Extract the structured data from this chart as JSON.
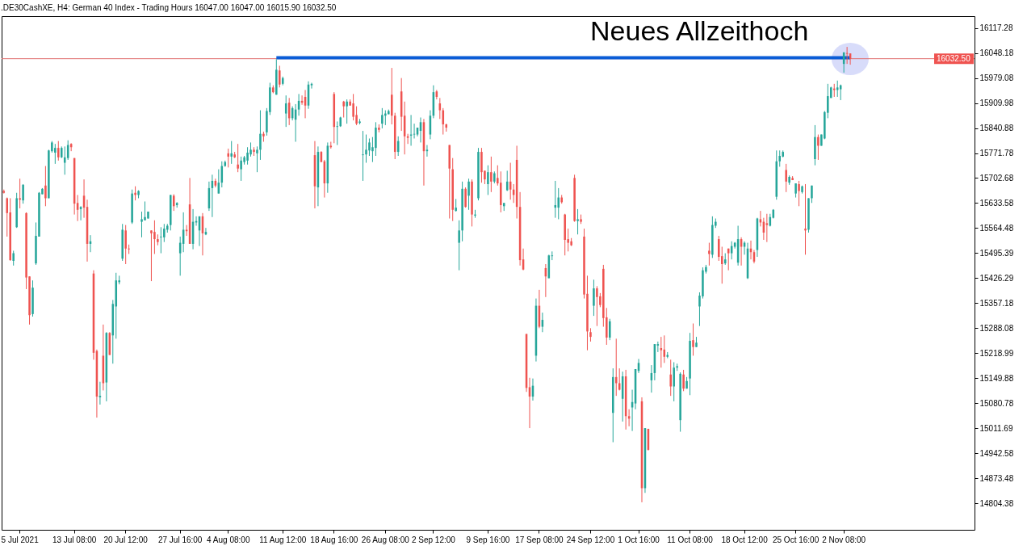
{
  "chart_data": {
    "type": "candlestick",
    "title": ".DE30CashXE, H4: German 40 Index - Trading Hours 16047.00 16047.00 16015.90 16032.50",
    "annotations": [
      "Neues Allzeithoch"
    ],
    "categories": [
      null,
      null,
      null,
      null,
      null,
      "5 Jul 2021",
      null,
      null,
      null,
      null,
      null,
      null,
      null,
      null,
      null,
      null,
      null,
      null,
      null,
      null,
      null,
      null,
      "13 Jul 08:00",
      null,
      null,
      null,
      null,
      null,
      null,
      null,
      null,
      null,
      null,
      null,
      null,
      null,
      null,
      null,
      "20 Jul 12:00",
      null,
      null,
      null,
      null,
      null,
      null,
      null,
      null,
      null,
      null,
      null,
      null,
      null,
      null,
      null,
      null,
      "27 Jul 16:00",
      null,
      null,
      null,
      null,
      null,
      null,
      null,
      null,
      null,
      null,
      null,
      null,
      null,
      null,
      "4 Aug 08:00",
      null,
      null,
      null,
      null,
      null,
      null,
      null,
      null,
      null,
      null,
      null,
      null,
      null,
      null,
      null,
      null,
      "11 Aug 12:00",
      null,
      null,
      null,
      null,
      null,
      null,
      null,
      null,
      null,
      null,
      null,
      null,
      null,
      null,
      null,
      "18 Aug 16:00",
      null,
      null,
      null,
      null,
      null,
      null,
      null,
      null,
      null,
      null,
      null,
      null,
      null,
      null,
      null,
      "26 Aug 08:00",
      null,
      null,
      null,
      null,
      null,
      null,
      null,
      null,
      null,
      null,
      null,
      null,
      null,
      null,
      "2 Sep 12:00",
      null,
      null,
      null,
      null,
      null,
      null,
      null,
      null,
      null,
      null,
      null,
      null,
      null,
      null,
      null,
      null,
      "9 Sep 16:00",
      null,
      null,
      null,
      null,
      null,
      null,
      null,
      null,
      null,
      null,
      null,
      null,
      null,
      null,
      null,
      "17 Sep 08:00",
      null,
      null,
      null,
      null,
      null,
      null,
      null,
      null,
      null,
      null,
      null,
      null,
      null,
      null,
      null,
      "24 Sep 12:00",
      null,
      null,
      null,
      null,
      null,
      null,
      null,
      null,
      null,
      null,
      null,
      null,
      null,
      null,
      "1 Oct 16:00",
      null,
      null,
      null,
      null,
      null,
      null,
      null,
      null,
      null,
      null,
      null,
      null,
      null,
      null,
      null,
      "11 Oct 08:00",
      null,
      null,
      null,
      null,
      null,
      null,
      null,
      null,
      null,
      null,
      null,
      null,
      null,
      null,
      null,
      null,
      "18 Oct 12:00",
      null,
      null,
      null,
      null,
      null,
      null,
      null,
      null,
      null,
      null,
      null,
      null,
      null,
      null,
      null,
      "25 Oct 16:00",
      null,
      null,
      null,
      null,
      null,
      null,
      null,
      null,
      null,
      null,
      null,
      null,
      null,
      null,
      "2 Nov 08:00",
      null,
      null
    ],
    "ohlc": [
      [
        15667,
        15671,
        15660,
        15662
      ],
      [
        15647,
        15649,
        15541,
        15606
      ],
      [
        15608,
        15647,
        15474,
        15476
      ],
      [
        15474,
        15502,
        15461,
        15495
      ],
      [
        15567,
        15662,
        15565,
        15647
      ],
      [
        15647,
        15701,
        15619,
        15643
      ],
      [
        15641,
        15686,
        15632,
        15684
      ],
      [
        15606,
        15608,
        15396,
        15428
      ],
      [
        15431,
        15431,
        15298,
        15324
      ],
      [
        15327,
        15420,
        15320,
        15400
      ],
      [
        15467,
        15580,
        15463,
        15543
      ],
      [
        15541,
        15664,
        15541,
        15662
      ],
      [
        15658,
        15675,
        15658,
        15673
      ],
      [
        15682,
        15736,
        15625,
        15647
      ],
      [
        15647,
        15781,
        15647,
        15779
      ],
      [
        15777,
        15805,
        15773,
        15801
      ],
      [
        15773,
        15797,
        15742,
        15786
      ],
      [
        15786,
        15805,
        15751,
        15760
      ],
      [
        15760,
        15790,
        15758,
        15786
      ],
      [
        15745,
        15790,
        15712,
        15760
      ],
      [
        15758,
        15807,
        15753,
        15794
      ],
      [
        15797,
        15799,
        15777,
        15788
      ],
      [
        15758,
        15758,
        15602,
        15632
      ],
      [
        15634,
        15656,
        15584,
        15615
      ],
      [
        15617,
        15625,
        15586,
        15623
      ],
      [
        15654,
        15699,
        15593,
        15621
      ],
      [
        15623,
        15643,
        15472,
        15521
      ],
      [
        15521,
        15545,
        15498,
        15528
      ],
      [
        15439,
        15448,
        15201,
        15220
      ],
      [
        15225,
        15229,
        15041,
        15099
      ],
      [
        15097,
        15140,
        15077,
        15101
      ],
      [
        15212,
        15298,
        15116,
        15136
      ],
      [
        15138,
        15277,
        15086,
        15275
      ],
      [
        15275,
        15277,
        15214,
        15214
      ],
      [
        15268,
        15366,
        15190,
        15355
      ],
      [
        15348,
        15441,
        15259,
        15420
      ],
      [
        15415,
        15433,
        15409,
        15420
      ],
      [
        15480,
        15576,
        15474,
        15560
      ],
      [
        15558,
        15573,
        15465,
        15508
      ],
      [
        15508,
        15519,
        15493,
        15506
      ],
      [
        15580,
        15671,
        15576,
        15660
      ],
      [
        15662,
        15680,
        15641,
        15656
      ],
      [
        15656,
        15669,
        15647,
        15667
      ],
      [
        15582,
        15610,
        15539,
        15589
      ],
      [
        15586,
        15638,
        15586,
        15595
      ],
      [
        15591,
        15610,
        15591,
        15610
      ],
      [
        15558,
        15558,
        15418,
        15550
      ],
      [
        15554,
        15586,
        15493,
        15534
      ],
      [
        15534,
        15547,
        15517,
        15526
      ],
      [
        15539,
        15567,
        15495,
        15541
      ],
      [
        15539,
        15576,
        15526,
        15563
      ],
      [
        15560,
        15576,
        15552,
        15571
      ],
      [
        15573,
        15656,
        15558,
        15656
      ],
      [
        15654,
        15658,
        15612,
        15625
      ],
      [
        15628,
        15636,
        15621,
        15634
      ],
      [
        15495,
        15541,
        15433,
        15524
      ],
      [
        15521,
        15608,
        15498,
        15560
      ],
      [
        15560,
        15573,
        15543,
        15556
      ],
      [
        15630,
        15703,
        15521,
        15521
      ],
      [
        15521,
        15617,
        15506,
        15582
      ],
      [
        15580,
        15597,
        15571,
        15584
      ],
      [
        15558,
        15597,
        15515,
        15597
      ],
      [
        15597,
        15606,
        15489,
        15550
      ],
      [
        15547,
        15565,
        15545,
        15554
      ],
      [
        15619,
        15693,
        15612,
        15675
      ],
      [
        15675,
        15712,
        15595,
        15695
      ],
      [
        15695,
        15701,
        15677,
        15682
      ],
      [
        15660,
        15727,
        15660,
        15690
      ],
      [
        15690,
        15749,
        15677,
        15736
      ],
      [
        15736,
        15751,
        15734,
        15747
      ],
      [
        15771,
        15784,
        15732,
        15762
      ],
      [
        15762,
        15805,
        15742,
        15771
      ],
      [
        15768,
        15775,
        15758,
        15760
      ],
      [
        15740,
        15797,
        15719,
        15729
      ],
      [
        15727,
        15762,
        15695,
        15751
      ],
      [
        15747,
        15764,
        15740,
        15760
      ],
      [
        15751,
        15788,
        15740,
        15773
      ],
      [
        15768,
        15801,
        15762,
        15781
      ],
      [
        15781,
        15788,
        15764,
        15775
      ],
      [
        15771,
        15790,
        15719,
        15781
      ],
      [
        15781,
        15890,
        15753,
        15825
      ],
      [
        15825,
        15831,
        15803,
        15818
      ],
      [
        15829,
        15896,
        15820,
        15888
      ],
      [
        15885,
        15966,
        15877,
        15953
      ],
      [
        15953,
        15959,
        15937,
        15940
      ],
      [
        15933,
        16031,
        15933,
        16002
      ],
      [
        16000,
        16013,
        15953,
        15961
      ],
      [
        15963,
        15983,
        15959,
        15979
      ],
      [
        15881,
        15931,
        15844,
        15909
      ],
      [
        15911,
        15924,
        15849,
        15868
      ],
      [
        15868,
        15901,
        15862,
        15896
      ],
      [
        15864,
        15907,
        15803,
        15892
      ],
      [
        15892,
        15935,
        15875,
        15916
      ],
      [
        15916,
        15931,
        15905,
        15911
      ],
      [
        15927,
        15946,
        15868,
        15903
      ],
      [
        15903,
        15970,
        15894,
        15961
      ],
      [
        15959,
        15966,
        15950,
        15963
      ],
      [
        15766,
        15805,
        15619,
        15680
      ],
      [
        15677,
        15790,
        15625,
        15775
      ],
      [
        15775,
        15777,
        15747,
        15747
      ],
      [
        15749,
        15753,
        15649,
        15688
      ],
      [
        15688,
        15801,
        15662,
        15792
      ],
      [
        15792,
        15803,
        15784,
        15788
      ],
      [
        15935,
        15940,
        15799,
        15844
      ],
      [
        15844,
        15859,
        15794,
        15846
      ],
      [
        15846,
        15872,
        15844,
        15870
      ],
      [
        15914,
        15916,
        15870,
        15901
      ],
      [
        15901,
        15920,
        15853,
        15914
      ],
      [
        15914,
        15920,
        15903,
        15903
      ],
      [
        15909,
        15935,
        15862,
        15872
      ],
      [
        15877,
        15901,
        15849,
        15853
      ],
      [
        15855,
        15866,
        15851,
        15859
      ],
      [
        15766,
        15833,
        15695,
        15768
      ],
      [
        15768,
        15823,
        15745,
        15781
      ],
      [
        15779,
        15812,
        15764,
        15801
      ],
      [
        15777,
        15816,
        15747,
        15788
      ],
      [
        15786,
        15857,
        15764,
        15842
      ],
      [
        15842,
        15851,
        15829,
        15836
      ],
      [
        15853,
        15896,
        15840,
        15877
      ],
      [
        15875,
        15890,
        15849,
        15881
      ],
      [
        15879,
        15892,
        15879,
        15888
      ],
      [
        15933,
        16007,
        15851,
        15875
      ],
      [
        15875,
        15883,
        15755,
        15775
      ],
      [
        15775,
        15818,
        15764,
        15805
      ],
      [
        15942,
        15979,
        15833,
        15872
      ],
      [
        15875,
        15914,
        15768,
        15818
      ],
      [
        15818,
        15825,
        15797,
        15814
      ],
      [
        15820,
        15877,
        15792,
        15823
      ],
      [
        15823,
        15853,
        15812,
        15825
      ],
      [
        15823,
        15842,
        15818,
        15842
      ],
      [
        15833,
        15870,
        15801,
        15857
      ],
      [
        15857,
        15866,
        15682,
        15777
      ],
      [
        15777,
        15794,
        15762,
        15781
      ],
      [
        15823,
        15890,
        15810,
        15875
      ],
      [
        15875,
        15959,
        15868,
        15940
      ],
      [
        15942,
        15946,
        15920,
        15927
      ],
      [
        15909,
        15924,
        15866,
        15890
      ],
      [
        15890,
        15896,
        15823,
        15851
      ],
      [
        15851,
        15853,
        15831,
        15842
      ],
      [
        15794,
        15794,
        15591,
        15729
      ],
      [
        15727,
        15758,
        15584,
        15615
      ],
      [
        15612,
        15645,
        15610,
        15621
      ],
      [
        15524,
        15586,
        15448,
        15558
      ],
      [
        15558,
        15693,
        15528,
        15673
      ],
      [
        15673,
        15677,
        15621,
        15623
      ],
      [
        15654,
        15701,
        15615,
        15693
      ],
      [
        15693,
        15699,
        15569,
        15602
      ],
      [
        15599,
        15615,
        15593,
        15602
      ],
      [
        15647,
        15786,
        15641,
        15775
      ],
      [
        15775,
        15786,
        15690,
        15719
      ],
      [
        15723,
        15723,
        15686,
        15699
      ],
      [
        15686,
        15738,
        15656,
        15719
      ],
      [
        15719,
        15762,
        15664,
        15693
      ],
      [
        15693,
        15721,
        15688,
        15716
      ],
      [
        15703,
        15738,
        15682,
        15688
      ],
      [
        15690,
        15721,
        15608,
        15628
      ],
      [
        15625,
        15634,
        15612,
        15634
      ],
      [
        15669,
        15723,
        15667,
        15693
      ],
      [
        15693,
        15745,
        15643,
        15671
      ],
      [
        15671,
        15686,
        15634,
        15656
      ],
      [
        15753,
        15792,
        15591,
        15623
      ],
      [
        15623,
        15664,
        15461,
        15476
      ],
      [
        15478,
        15508,
        15448,
        15450
      ],
      [
        15272,
        15272,
        15112,
        15123
      ],
      [
        15125,
        15151,
        15012,
        15099
      ],
      [
        15099,
        15149,
        15088,
        15129
      ],
      [
        15212,
        15370,
        15196,
        15350
      ],
      [
        15350,
        15394,
        15288,
        15292
      ],
      [
        15292,
        15331,
        15277,
        15311
      ],
      [
        15454,
        15465,
        15374,
        15431
      ],
      [
        15426,
        15491,
        15426,
        15489
      ],
      [
        15487,
        15500,
        15476,
        15489
      ],
      [
        15621,
        15695,
        15593,
        15628
      ],
      [
        15621,
        15675,
        15589,
        15649
      ],
      [
        15649,
        15656,
        15632,
        15636
      ],
      [
        15602,
        15604,
        15489,
        15532
      ],
      [
        15534,
        15563,
        15500,
        15524
      ],
      [
        15528,
        15537,
        15515,
        15517
      ],
      [
        15703,
        15712,
        15582,
        15584
      ],
      [
        15584,
        15617,
        15547,
        15589
      ],
      [
        15589,
        15602,
        15576,
        15582
      ],
      [
        15541,
        15563,
        15370,
        15381
      ],
      [
        15383,
        15433,
        15227,
        15279
      ],
      [
        15277,
        15288,
        15251,
        15264
      ],
      [
        15350,
        15422,
        15322,
        15398
      ],
      [
        15398,
        15404,
        15294,
        15374
      ],
      [
        15376,
        15385,
        15346,
        15352
      ],
      [
        15452,
        15463,
        15292,
        15316
      ],
      [
        15318,
        15344,
        15242,
        15262
      ],
      [
        15262,
        15314,
        15255,
        15307
      ],
      [
        15054,
        15177,
        14973,
        15153
      ],
      [
        15153,
        15259,
        15101,
        15136
      ],
      [
        15136,
        15177,
        15116,
        15118
      ],
      [
        15093,
        15168,
        15030,
        15155
      ],
      [
        15155,
        15173,
        15008,
        15045
      ],
      [
        15045,
        15064,
        15017,
        15038
      ],
      [
        15069,
        15118,
        15004,
        15084
      ],
      [
        15080,
        15175,
        15064,
        15175
      ],
      [
        15170,
        15203,
        15164,
        15192
      ],
      [
        15086,
        15097,
        14807,
        14846
      ],
      [
        14846,
        15012,
        14833,
        15012
      ],
      [
        15010,
        15010,
        14950,
        14952
      ],
      [
        15144,
        15186,
        15110,
        15164
      ],
      [
        15164,
        15244,
        15144,
        15244
      ],
      [
        15240,
        15251,
        15222,
        15244
      ],
      [
        15233,
        15264,
        15179,
        15227
      ],
      [
        15229,
        15268,
        15192,
        15209
      ],
      [
        15209,
        15222,
        15205,
        15214
      ],
      [
        15160,
        15201,
        15101,
        15127
      ],
      [
        15127,
        15194,
        15086,
        15179
      ],
      [
        15179,
        15190,
        15170,
        15183
      ],
      [
        15034,
        15166,
        15002,
        15162
      ],
      [
        15160,
        15173,
        15114,
        15121
      ],
      [
        15121,
        15153,
        15121,
        15142
      ],
      [
        15149,
        15275,
        15103,
        15253
      ],
      [
        15255,
        15301,
        15212,
        15236
      ],
      [
        15236,
        15264,
        15236,
        15248
      ],
      [
        15348,
        15387,
        15294,
        15378
      ],
      [
        15376,
        15456,
        15370,
        15448
      ],
      [
        15444,
        15463,
        15439,
        15457
      ],
      [
        15502,
        15524,
        15461,
        15493
      ],
      [
        15491,
        15597,
        15482,
        15573
      ],
      [
        15571,
        15591,
        15565,
        15582
      ],
      [
        15534,
        15543,
        15474,
        15485
      ],
      [
        15487,
        15513,
        15411,
        15465
      ],
      [
        15467,
        15495,
        15463,
        15478
      ],
      [
        15508,
        15508,
        15448,
        15495
      ],
      [
        15495,
        15528,
        15478,
        15515
      ],
      [
        15513,
        15526,
        15508,
        15524
      ],
      [
        15469,
        15571,
        15461,
        15534
      ],
      [
        15534,
        15539,
        15461,
        15513
      ],
      [
        15513,
        15528,
        15491,
        15524
      ],
      [
        15426,
        15524,
        15424,
        15508
      ],
      [
        15508,
        15530,
        15478,
        15498
      ],
      [
        15498,
        15504,
        15467,
        15472
      ],
      [
        15504,
        15593,
        15485,
        15591
      ],
      [
        15589,
        15612,
        15569,
        15580
      ],
      [
        15582,
        15593,
        15532,
        15552
      ],
      [
        15578,
        15604,
        15526,
        15573
      ],
      [
        15571,
        15604,
        15569,
        15595
      ],
      [
        15593,
        15617,
        15591,
        15615
      ],
      [
        15651,
        15779,
        15643,
        15749
      ],
      [
        15749,
        15779,
        15734,
        15764
      ],
      [
        15762,
        15779,
        15760,
        15775
      ],
      [
        15725,
        15742,
        15664,
        15693
      ],
      [
        15690,
        15710,
        15684,
        15706
      ],
      [
        15703,
        15708,
        15697,
        15697
      ],
      [
        15660,
        15688,
        15649,
        15688
      ],
      [
        15686,
        15695,
        15625,
        15667
      ],
      [
        15664,
        15682,
        15660,
        15680
      ],
      [
        15563,
        15686,
        15491,
        15558
      ],
      [
        15560,
        15647,
        15552,
        15647
      ],
      [
        15647,
        15682,
        15634,
        15682
      ],
      [
        15755,
        15849,
        15738,
        15816
      ],
      [
        15816,
        15823,
        15753,
        15792
      ],
      [
        15792,
        15823,
        15792,
        15823
      ],
      [
        15812,
        15888,
        15810,
        15885
      ],
      [
        15883,
        15963,
        15868,
        15929
      ],
      [
        15924,
        15955,
        15924,
        15953
      ],
      [
        15950,
        15963,
        15927,
        15946
      ],
      [
        15946,
        15972,
        15927,
        15953
      ],
      [
        15948,
        15961,
        15918,
        15959
      ],
      [
        16018,
        16050,
        15994,
        16050
      ],
      [
        16048,
        16065,
        16018,
        16046
      ],
      [
        16047,
        16047,
        16015.9,
        16032.5
      ]
    ],
    "colors": [
      "#ef5350",
      "#ef5350",
      "#ef5350",
      "#26a69a",
      "#26a69a",
      "#ef5350",
      "#26a69a",
      "#ef5350",
      "#ef5350",
      "#26a69a",
      "#26a69a",
      "#26a69a",
      "#26a69a",
      "#ef5350",
      "#26a69a",
      "#26a69a",
      "#26a69a",
      "#ef5350",
      "#26a69a",
      "#26a69a",
      "#26a69a",
      "#ef5350",
      "#ef5350",
      "#ef5350",
      "#26a69a",
      "#ef5350",
      "#ef5350",
      "#26a69a",
      "#ef5350",
      "#ef5350",
      "#26a69a",
      "#ef5350",
      "#26a69a",
      "#ef5350",
      "#26a69a",
      "#26a69a",
      "#26a69a",
      "#26a69a",
      "#ef5350",
      "#ef5350",
      "#26a69a",
      "#ef5350",
      "#26a69a",
      "#26a69a",
      "#26a69a",
      "#26a69a",
      "#ef5350",
      "#ef5350",
      "#ef5350",
      "#26a69a",
      "#26a69a",
      "#26a69a",
      "#26a69a",
      "#ef5350",
      "#26a69a",
      "#26a69a",
      "#26a69a",
      "#ef5350",
      "#ef5350",
      "#26a69a",
      "#26a69a",
      "#26a69a",
      "#ef5350",
      "#26a69a",
      "#26a69a",
      "#26a69a",
      "#ef5350",
      "#26a69a",
      "#26a69a",
      "#26a69a",
      "#ef5350",
      "#26a69a",
      "#ef5350",
      "#ef5350",
      "#26a69a",
      "#26a69a",
      "#26a69a",
      "#26a69a",
      "#ef5350",
      "#26a69a",
      "#26a69a",
      "#ef5350",
      "#26a69a",
      "#26a69a",
      "#ef5350",
      "#26a69a",
      "#ef5350",
      "#26a69a",
      "#26a69a",
      "#ef5350",
      "#26a69a",
      "#26a69a",
      "#26a69a",
      "#ef5350",
      "#ef5350",
      "#26a69a",
      "#26a69a",
      "#ef5350",
      "#26a69a",
      "#ef5350",
      "#ef5350",
      "#26a69a",
      "#ef5350",
      "#ef5350",
      "#26a69a",
      "#26a69a",
      "#ef5350",
      "#26a69a",
      "#ef5350",
      "#ef5350",
      "#ef5350",
      "#26a69a",
      "#26a69a",
      "#26a69a",
      "#26a69a",
      "#26a69a",
      "#26a69a",
      "#ef5350",
      "#26a69a",
      "#26a69a",
      "#26a69a",
      "#ef5350",
      "#ef5350",
      "#26a69a",
      "#ef5350",
      "#ef5350",
      "#ef5350",
      "#26a69a",
      "#26a69a",
      "#26a69a",
      "#26a69a",
      "#ef5350",
      "#26a69a",
      "#26a69a",
      "#26a69a",
      "#ef5350",
      "#ef5350",
      "#ef5350",
      "#ef5350",
      "#ef5350",
      "#ef5350",
      "#26a69a",
      "#26a69a",
      "#26a69a",
      "#ef5350",
      "#26a69a",
      "#ef5350",
      "#26a69a",
      "#26a69a",
      "#ef5350",
      "#ef5350",
      "#26a69a",
      "#ef5350",
      "#26a69a",
      "#ef5350",
      "#ef5350",
      "#26a69a",
      "#26a69a",
      "#ef5350",
      "#ef5350",
      "#ef5350",
      "#ef5350",
      "#ef5350",
      "#ef5350",
      "#ef5350",
      "#26a69a",
      "#26a69a",
      "#ef5350",
      "#26a69a",
      "#ef5350",
      "#26a69a",
      "#26a69a",
      "#26a69a",
      "#26a69a",
      "#ef5350",
      "#ef5350",
      "#ef5350",
      "#ef5350",
      "#ef5350",
      "#26a69a",
      "#ef5350",
      "#ef5350",
      "#ef5350",
      "#ef5350",
      "#26a69a",
      "#ef5350",
      "#ef5350",
      "#ef5350",
      "#ef5350",
      "#26a69a",
      "#26a69a",
      "#ef5350",
      "#ef5350",
      "#26a69a",
      "#ef5350",
      "#ef5350",
      "#26a69a",
      "#26a69a",
      "#26a69a",
      "#ef5350",
      "#26a69a",
      "#ef5350",
      "#26a69a",
      "#26a69a",
      "#26a69a",
      "#ef5350",
      "#ef5350",
      "#26a69a",
      "#ef5350",
      "#26a69a",
      "#26a69a",
      "#26a69a",
      "#ef5350",
      "#26a69a",
      "#26a69a",
      "#ef5350",
      "#26a69a",
      "#26a69a",
      "#26a69a",
      "#26a69a",
      "#ef5350",
      "#26a69a",
      "#26a69a",
      "#ef5350",
      "#ef5350",
      "#26a69a",
      "#ef5350",
      "#26a69a",
      "#26a69a",
      "#26a69a",
      "#ef5350",
      "#26a69a",
      "#26a69a",
      "#ef5350",
      "#ef5350",
      "#26a69a",
      "#ef5350",
      "#ef5350",
      "#ef5350",
      "#26a69a",
      "#26a69a",
      "#26a69a",
      "#26a69a",
      "#26a69a",
      "#ef5350",
      "#26a69a",
      "#ef5350",
      "#26a69a",
      "#ef5350",
      "#26a69a",
      "#ef5350",
      "#26a69a",
      "#26a69a",
      "#26a69a",
      "#ef5350",
      "#26a69a",
      "#26a69a",
      "#26a69a",
      "#26a69a",
      "#ef5350",
      "#26a69a",
      "#26a69a",
      "#26a69a",
      "#ef5350",
      "#ef5350"
    ],
    "series": [
      {
        "type": "line",
        "color": "#0a5cd6",
        "values": [
          null,
          null,
          null,
          null,
          null,
          null,
          null,
          null,
          null,
          null,
          null,
          null,
          null,
          null,
          null,
          null,
          null,
          null,
          null,
          null,
          null,
          null,
          null,
          null,
          null,
          null,
          null,
          null,
          null,
          null,
          null,
          null,
          null,
          null,
          null,
          null,
          null,
          null,
          null,
          null,
          null,
          null,
          null,
          null,
          null,
          null,
          null,
          null,
          null,
          null,
          null,
          null,
          null,
          null,
          null,
          null,
          null,
          null,
          null,
          null,
          null,
          null,
          null,
          null,
          null,
          null,
          null,
          null,
          null,
          null,
          null,
          null,
          null,
          null,
          null,
          null,
          null,
          null,
          null,
          null,
          null,
          null,
          null,
          null,
          null,
          16035,
          16035,
          16035,
          16035,
          16035,
          16035,
          16035,
          16035,
          16035,
          16035,
          16035,
          16035,
          16035,
          16035,
          16035,
          16035,
          16035,
          16035,
          16035,
          16035,
          16035,
          16035,
          16035,
          16035,
          16035,
          16035,
          16035,
          16035,
          16035,
          16035,
          16035,
          16035,
          16035,
          16035,
          16035,
          16035,
          16035,
          16035,
          16035,
          16035,
          16035,
          16035,
          16035,
          16035,
          16035,
          16035,
          16035,
          16035,
          16035,
          16035,
          16035,
          16035,
          16035,
          16035,
          16035,
          16035,
          16035,
          16035,
          16035,
          16035,
          16035,
          16035,
          16035,
          16035,
          16035,
          16035,
          16035,
          16035,
          16035,
          16035,
          16035,
          16035,
          16035,
          16035,
          16035,
          16035,
          16035,
          16035,
          16035,
          16035,
          16035,
          16035,
          16035,
          16035,
          16035,
          16035,
          16035,
          16035,
          16035,
          16035,
          16035,
          16035,
          16035,
          16035,
          16035,
          16035,
          16035,
          16035,
          16035,
          16035,
          16035,
          16035,
          16035,
          16035,
          16035,
          16035,
          16035,
          16035,
          16035,
          16035,
          16035,
          16035,
          16035,
          16035,
          16035,
          16035,
          16035,
          16035,
          16035,
          16035,
          16035,
          16035,
          16035,
          16035,
          16035,
          16035,
          16035,
          16035,
          16035,
          16035,
          16035,
          16035,
          16035,
          16035,
          16035,
          16035,
          16035,
          16035,
          16035,
          16035,
          16035,
          16035,
          16035,
          16035,
          16035,
          16035,
          16035,
          16035,
          16035,
          16035,
          16035,
          16035,
          16035,
          16035,
          16035,
          16035,
          16035,
          16035,
          16035,
          16035,
          16035,
          16035,
          16035,
          16035,
          16035,
          16035,
          16035,
          16035,
          16035,
          16035,
          16035,
          16035,
          16035,
          16035,
          16035,
          16035,
          16035,
          16035,
          16035,
          16035
        ]
      }
    ],
    "ylim": [
      14731,
      16150
    ],
    "yticks": [
      16117.28,
      16048.18,
      15979.08,
      15909.98,
      15840.88,
      15771.78,
      15702.68,
      15633.58,
      15564.48,
      15495.39,
      15426.29,
      15357.18,
      15288.08,
      15218.99,
      15149.88,
      15080.78,
      15011.69,
      14942.58,
      14873.48,
      14804.38
    ],
    "ref_lines": [
      {
        "axis": "y",
        "value": 16032.5,
        "label": "16032.50",
        "color": "#e07070"
      }
    ]
  }
}
